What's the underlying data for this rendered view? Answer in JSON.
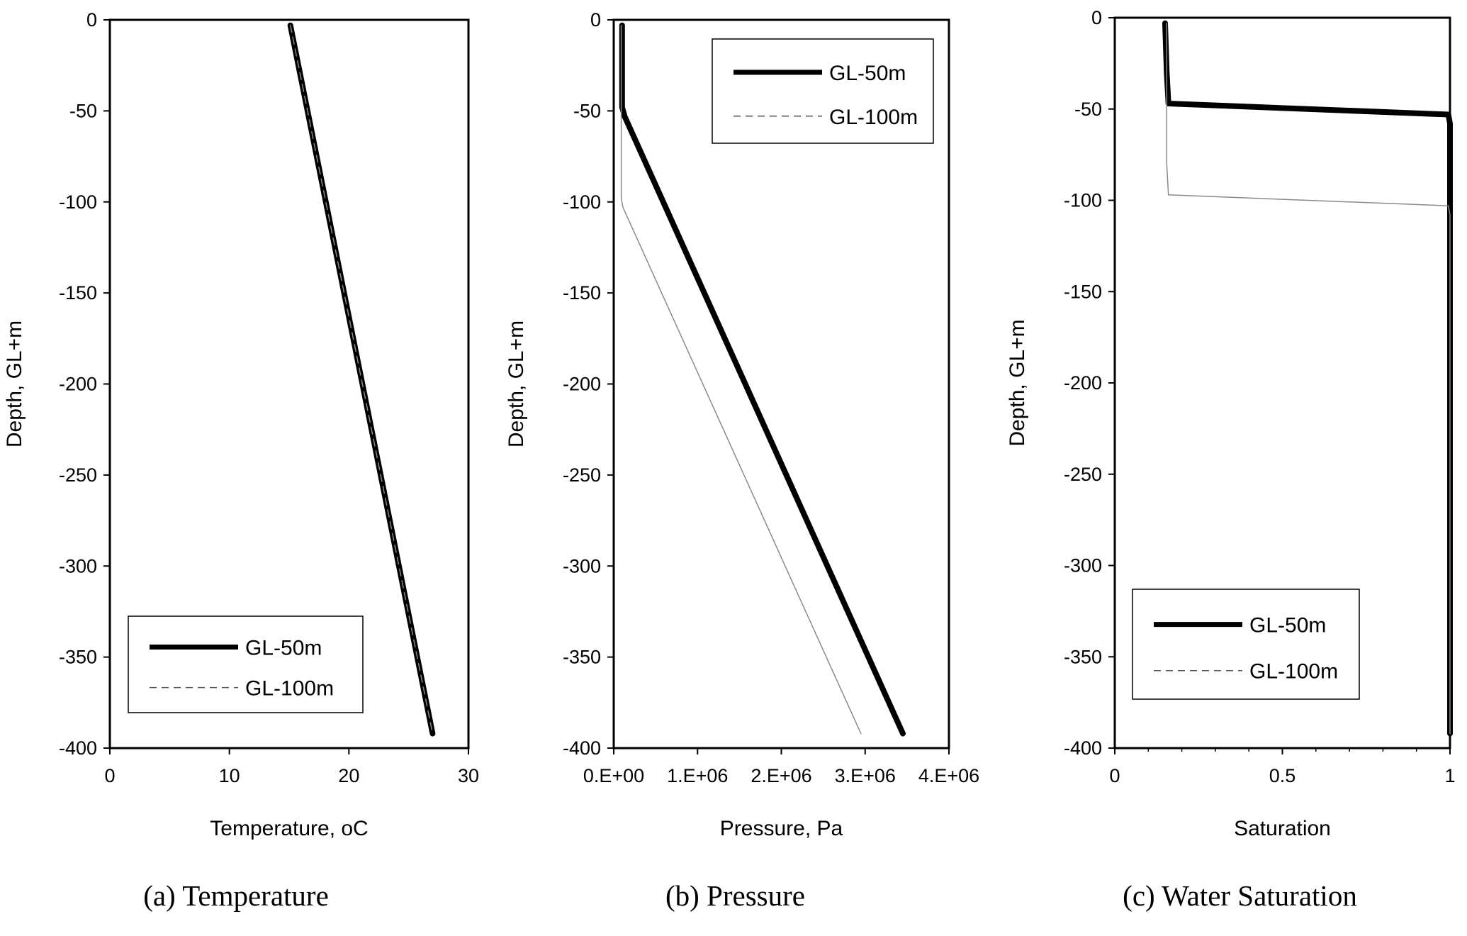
{
  "chart_data": [
    {
      "type": "line",
      "caption": "(a) Temperature",
      "xlabel": "Temperature, oC",
      "ylabel": "Depth, GL+m",
      "xlim": [
        0,
        30
      ],
      "ylim": [
        -400,
        0
      ],
      "xticks": [
        0,
        10,
        20,
        30
      ],
      "xtick_labels": [
        "0",
        "10",
        "20",
        "30"
      ],
      "yticks": [
        0,
        -50,
        -100,
        -150,
        -200,
        -250,
        -300,
        -350,
        -400
      ],
      "ytick_labels": [
        "0",
        "-50",
        "-100",
        "-150",
        "-200",
        "-250",
        "-300",
        "-350",
        "-400"
      ],
      "grid": false,
      "legend_position": "bottom-left",
      "series": [
        {
          "name": "GL-50m",
          "style": "solid-thick",
          "x": [
            15.1,
            27.0
          ],
          "y": [
            -3,
            -392
          ]
        },
        {
          "name": "GL-100m",
          "style": "dashed-thin",
          "x": [
            15.1,
            27.0
          ],
          "y": [
            -3,
            -392
          ]
        }
      ]
    },
    {
      "type": "line",
      "caption": "(b) Pressure",
      "xlabel": "Pressure, Pa",
      "ylabel": "Depth, GL+m",
      "xlim": [
        0,
        4000000
      ],
      "ylim": [
        -400,
        0
      ],
      "xticks": [
        0,
        1000000,
        2000000,
        3000000,
        4000000
      ],
      "xtick_labels": [
        "0.E+00",
        "1.E+06",
        "2.E+06",
        "3.E+06",
        "4.E+06"
      ],
      "yticks": [
        0,
        -50,
        -100,
        -150,
        -200,
        -250,
        -300,
        -350,
        -400
      ],
      "ytick_labels": [
        "0",
        "-50",
        "-100",
        "-150",
        "-200",
        "-250",
        "-300",
        "-350",
        "-400"
      ],
      "grid": false,
      "legend_position": "top-right",
      "series": [
        {
          "name": "GL-50m",
          "style": "solid-thick",
          "x": [
            100000,
            100000,
            130000,
            3450000
          ],
          "y": [
            -3,
            -48,
            -53,
            -392
          ]
        },
        {
          "name": "GL-100m",
          "style": "dashed-thin",
          "x": [
            90000,
            90000,
            110000,
            2950000
          ],
          "y": [
            -3,
            -98,
            -103,
            -392
          ]
        }
      ]
    },
    {
      "type": "line",
      "caption": "(c) Water Saturation",
      "xlabel": "Saturation",
      "ylabel": "Depth, GL+m",
      "xlim": [
        0,
        1
      ],
      "ylim": [
        -400,
        0
      ],
      "xticks": [
        0,
        0.5,
        1
      ],
      "xtick_labels": [
        "0",
        "0.5",
        "1"
      ],
      "yticks": [
        0,
        -50,
        -100,
        -150,
        -200,
        -250,
        -300,
        -350,
        -400
      ],
      "ytick_labels": [
        "0",
        "-50",
        "-100",
        "-150",
        "-200",
        "-250",
        "-300",
        "-350",
        "-400"
      ],
      "grid": false,
      "legend_position": "bottom-left",
      "series": [
        {
          "name": "GL-50m",
          "style": "solid-thick",
          "x": [
            0.15,
            0.155,
            0.16,
            0.995,
            1.0,
            1.0
          ],
          "y": [
            -3,
            -30,
            -47,
            -53,
            -58,
            -392
          ]
        },
        {
          "name": "GL-100m",
          "style": "dashed-thin",
          "x": [
            0.155,
            0.155,
            0.16,
            0.995,
            1.0,
            1.0
          ],
          "y": [
            -3,
            -80,
            -97,
            -103,
            -108,
            -392
          ]
        }
      ]
    }
  ]
}
